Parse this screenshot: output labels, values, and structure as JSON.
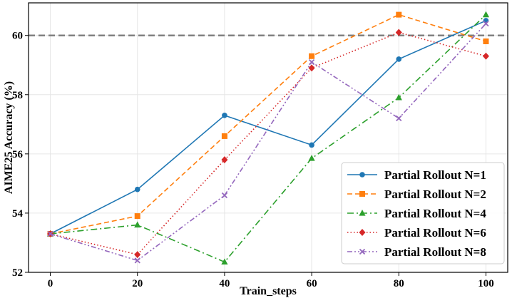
{
  "chart_data": {
    "type": "line",
    "title": "",
    "xlabel": "Train_steps",
    "ylabel": "AIME25 Accuracy (%)",
    "x": [
      0,
      20,
      40,
      60,
      80,
      100
    ],
    "xticks": [
      0,
      20,
      40,
      60,
      80,
      100
    ],
    "yticks": [
      52,
      54,
      56,
      58,
      60
    ],
    "xlim": [
      -5,
      105
    ],
    "ylim": [
      52.0,
      61.1
    ],
    "grid": true,
    "legend_position": "bottom-right",
    "reference_line": {
      "y": 60,
      "style": "dashed",
      "color": "#808080"
    },
    "series": [
      {
        "name": "Partial Rollout N=1",
        "values": [
          53.3,
          54.8,
          57.3,
          56.3,
          59.2,
          60.5
        ],
        "color": "#1f77b4",
        "dash": "solid",
        "marker": "circle"
      },
      {
        "name": "Partial Rollout N=2",
        "values": [
          53.3,
          53.9,
          56.6,
          59.3,
          60.7,
          59.8
        ],
        "color": "#ff7f0e",
        "dash": "dashed",
        "marker": "square"
      },
      {
        "name": "Partial Rollout N=4",
        "values": [
          53.3,
          53.6,
          52.35,
          55.85,
          57.9,
          60.7
        ],
        "color": "#2ca02c",
        "dash": "dashdot",
        "marker": "triangle"
      },
      {
        "name": "Partial Rollout N=6",
        "values": [
          53.3,
          52.6,
          55.8,
          58.9,
          60.1,
          59.3
        ],
        "color": "#d62728",
        "dash": "dotted",
        "marker": "diamond"
      },
      {
        "name": "Partial Rollout N=8",
        "values": [
          53.3,
          52.4,
          54.6,
          59.1,
          57.2,
          60.4
        ],
        "color": "#9467bd",
        "dash": "dashdotdot",
        "marker": "x"
      }
    ]
  }
}
